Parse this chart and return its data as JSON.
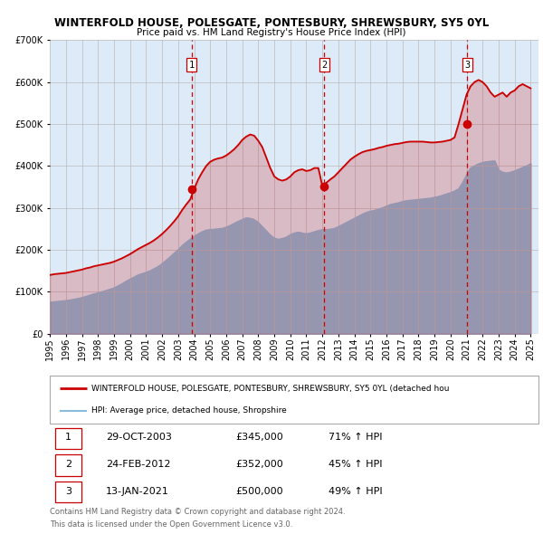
{
  "title": "WINTERFOLD HOUSE, POLESGATE, PONTESBURY, SHREWSBURY, SY5 0YL",
  "subtitle": "Price paid vs. HM Land Registry's House Price Index (HPI)",
  "legend_line1": "WINTERFOLD HOUSE, POLESGATE, PONTESBURY, SHREWSBURY, SY5 0YL (detached hou",
  "legend_line2": "HPI: Average price, detached house, Shropshire",
  "footer1": "Contains HM Land Registry data © Crown copyright and database right 2024.",
  "footer2": "This data is licensed under the Open Government Licence v3.0.",
  "ylim": [
    0,
    700000
  ],
  "yticks": [
    0,
    100000,
    200000,
    300000,
    400000,
    500000,
    600000,
    700000
  ],
  "ytick_labels": [
    "£0",
    "£100K",
    "£200K",
    "£300K",
    "£400K",
    "£500K",
    "£600K",
    "£700K"
  ],
  "xmin": 1995.0,
  "xmax": 2025.5,
  "transactions": [
    {
      "num": 1,
      "date": "29-OCT-2003",
      "price": 345000,
      "pct": "71%",
      "x": 2003.83
    },
    {
      "num": 2,
      "date": "24-FEB-2012",
      "price": 352000,
      "pct": "45%",
      "x": 2012.13
    },
    {
      "num": 3,
      "date": "13-JAN-2021",
      "price": 500000,
      "pct": "49%",
      "x": 2021.04
    }
  ],
  "hpi_color": "#8bbcdd",
  "price_color": "#cc0000",
  "dot_color": "#cc0000",
  "vline_color": "#cc0000",
  "background_color": "#ddeaf7",
  "grid_color": "#bbbbbb",
  "table_border_color": "#cc0000",
  "hpi_data_x": [
    1995.0,
    1995.25,
    1995.5,
    1995.75,
    1996.0,
    1996.25,
    1996.5,
    1996.75,
    1997.0,
    1997.25,
    1997.5,
    1997.75,
    1998.0,
    1998.25,
    1998.5,
    1998.75,
    1999.0,
    1999.25,
    1999.5,
    1999.75,
    2000.0,
    2000.25,
    2000.5,
    2000.75,
    2001.0,
    2001.25,
    2001.5,
    2001.75,
    2002.0,
    2002.25,
    2002.5,
    2002.75,
    2003.0,
    2003.25,
    2003.5,
    2003.75,
    2004.0,
    2004.25,
    2004.5,
    2004.75,
    2005.0,
    2005.25,
    2005.5,
    2005.75,
    2006.0,
    2006.25,
    2006.5,
    2006.75,
    2007.0,
    2007.25,
    2007.5,
    2007.75,
    2008.0,
    2008.25,
    2008.5,
    2008.75,
    2009.0,
    2009.25,
    2009.5,
    2009.75,
    2010.0,
    2010.25,
    2010.5,
    2010.75,
    2011.0,
    2011.25,
    2011.5,
    2011.75,
    2012.0,
    2012.25,
    2012.5,
    2012.75,
    2013.0,
    2013.25,
    2013.5,
    2013.75,
    2014.0,
    2014.25,
    2014.5,
    2014.75,
    2015.0,
    2015.25,
    2015.5,
    2015.75,
    2016.0,
    2016.25,
    2016.5,
    2016.75,
    2017.0,
    2017.25,
    2017.5,
    2017.75,
    2018.0,
    2018.25,
    2018.5,
    2018.75,
    2019.0,
    2019.25,
    2019.5,
    2019.75,
    2020.0,
    2020.25,
    2020.5,
    2020.75,
    2021.0,
    2021.25,
    2021.5,
    2021.75,
    2022.0,
    2022.25,
    2022.5,
    2022.75,
    2023.0,
    2023.25,
    2023.5,
    2023.75,
    2024.0,
    2024.25,
    2024.5,
    2024.75,
    2025.0
  ],
  "hpi_data_y": [
    75000,
    76000,
    77000,
    78000,
    79000,
    80500,
    82000,
    84000,
    86000,
    89000,
    92000,
    95000,
    97000,
    100000,
    103000,
    106000,
    109000,
    114000,
    119000,
    125000,
    130000,
    135000,
    140000,
    143000,
    146000,
    150000,
    155000,
    160000,
    167000,
    175000,
    183000,
    192000,
    200000,
    210000,
    218000,
    225000,
    232000,
    238000,
    243000,
    247000,
    248000,
    249000,
    250000,
    251000,
    254000,
    258000,
    263000,
    268000,
    272000,
    276000,
    275000,
    272000,
    265000,
    255000,
    245000,
    235000,
    228000,
    225000,
    227000,
    230000,
    236000,
    240000,
    242000,
    240000,
    238000,
    240000,
    243000,
    246000,
    248000,
    248000,
    249000,
    251000,
    255000,
    260000,
    265000,
    270000,
    275000,
    280000,
    285000,
    289000,
    292000,
    294000,
    297000,
    300000,
    304000,
    308000,
    310000,
    312000,
    315000,
    317000,
    318000,
    319000,
    320000,
    321000,
    322000,
    323000,
    325000,
    327000,
    330000,
    333000,
    336000,
    340000,
    345000,
    360000,
    378000,
    395000,
    400000,
    405000,
    408000,
    410000,
    411000,
    412000,
    390000,
    385000,
    383000,
    385000,
    388000,
    392000,
    396000,
    400000,
    405000
  ],
  "price_data_x": [
    1995.0,
    1995.25,
    1995.5,
    1995.75,
    1996.0,
    1996.25,
    1996.5,
    1996.75,
    1997.0,
    1997.25,
    1997.5,
    1997.75,
    1998.0,
    1998.25,
    1998.5,
    1998.75,
    1999.0,
    1999.25,
    1999.5,
    1999.75,
    2000.0,
    2000.25,
    2000.5,
    2000.75,
    2001.0,
    2001.25,
    2001.5,
    2001.75,
    2002.0,
    2002.25,
    2002.5,
    2002.75,
    2003.0,
    2003.25,
    2003.5,
    2003.75,
    2004.0,
    2004.25,
    2004.5,
    2004.75,
    2005.0,
    2005.25,
    2005.5,
    2005.75,
    2006.0,
    2006.25,
    2006.5,
    2006.75,
    2007.0,
    2007.25,
    2007.5,
    2007.75,
    2008.0,
    2008.25,
    2008.5,
    2008.75,
    2009.0,
    2009.25,
    2009.5,
    2009.75,
    2010.0,
    2010.25,
    2010.5,
    2010.75,
    2011.0,
    2011.25,
    2011.5,
    2011.75,
    2012.0,
    2012.25,
    2012.5,
    2012.75,
    2013.0,
    2013.25,
    2013.5,
    2013.75,
    2014.0,
    2014.25,
    2014.5,
    2014.75,
    2015.0,
    2015.25,
    2015.5,
    2015.75,
    2016.0,
    2016.25,
    2016.5,
    2016.75,
    2017.0,
    2017.25,
    2017.5,
    2017.75,
    2018.0,
    2018.25,
    2018.5,
    2018.75,
    2019.0,
    2019.25,
    2019.5,
    2019.75,
    2020.0,
    2020.25,
    2020.5,
    2020.75,
    2021.0,
    2021.25,
    2021.5,
    2021.75,
    2022.0,
    2022.25,
    2022.5,
    2022.75,
    2023.0,
    2023.25,
    2023.5,
    2023.75,
    2024.0,
    2024.25,
    2024.5,
    2024.75,
    2025.0
  ],
  "price_data_y": [
    140000,
    142000,
    143000,
    144000,
    145000,
    147000,
    149000,
    151000,
    153000,
    156000,
    158000,
    161000,
    163000,
    165000,
    167000,
    169000,
    172000,
    176000,
    180000,
    185000,
    190000,
    196000,
    202000,
    207000,
    212000,
    217000,
    223000,
    230000,
    238000,
    247000,
    257000,
    268000,
    280000,
    295000,
    308000,
    320000,
    345000,
    368000,
    385000,
    400000,
    410000,
    415000,
    418000,
    420000,
    425000,
    432000,
    440000,
    450000,
    462000,
    470000,
    475000,
    472000,
    460000,
    445000,
    420000,
    395000,
    375000,
    368000,
    365000,
    368000,
    375000,
    385000,
    390000,
    392000,
    388000,
    390000,
    395000,
    395000,
    352000,
    360000,
    368000,
    375000,
    385000,
    395000,
    405000,
    415000,
    422000,
    428000,
    433000,
    436000,
    438000,
    440000,
    443000,
    445000,
    448000,
    450000,
    452000,
    453000,
    455000,
    457000,
    458000,
    458000,
    458000,
    458000,
    457000,
    456000,
    456000,
    457000,
    458000,
    460000,
    462000,
    468000,
    500000,
    535000,
    570000,
    590000,
    600000,
    605000,
    600000,
    590000,
    575000,
    565000,
    570000,
    575000,
    565000,
    575000,
    580000,
    590000,
    595000,
    590000,
    585000
  ]
}
